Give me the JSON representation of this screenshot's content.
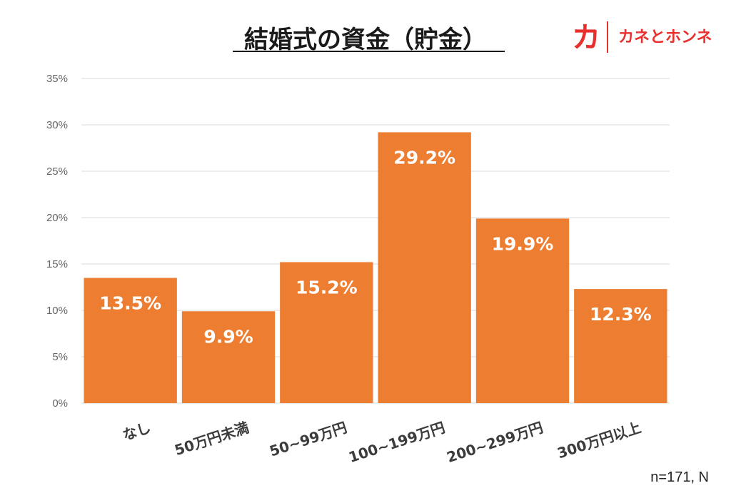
{
  "brand": {
    "mark": "カ",
    "name": "カネとホンネ",
    "color": "#e8312f"
  },
  "note": "n=171, N",
  "chart_data": {
    "type": "bar",
    "title": "結婚式の資金（貯金）",
    "categories": [
      "なし",
      "50万円未満",
      "50~99万円",
      "100~199万円",
      "200~299万円",
      "300万円以上"
    ],
    "values": [
      13.5,
      9.9,
      15.2,
      29.2,
      19.9,
      12.3
    ],
    "value_labels": [
      "13.5%",
      "9.9%",
      "15.2%",
      "29.2%",
      "19.9%",
      "12.3%"
    ],
    "ylim": [
      0,
      35
    ],
    "yticks": [
      0,
      5,
      10,
      15,
      20,
      25,
      30,
      35
    ],
    "ytick_labels": [
      "0%",
      "5%",
      "10%",
      "15%",
      "20%",
      "25%",
      "30%",
      "35%"
    ],
    "xlabel": "",
    "ylabel": "",
    "grid": true,
    "bar_color": "#ed7d31",
    "grid_color": "#d9d9d9"
  }
}
